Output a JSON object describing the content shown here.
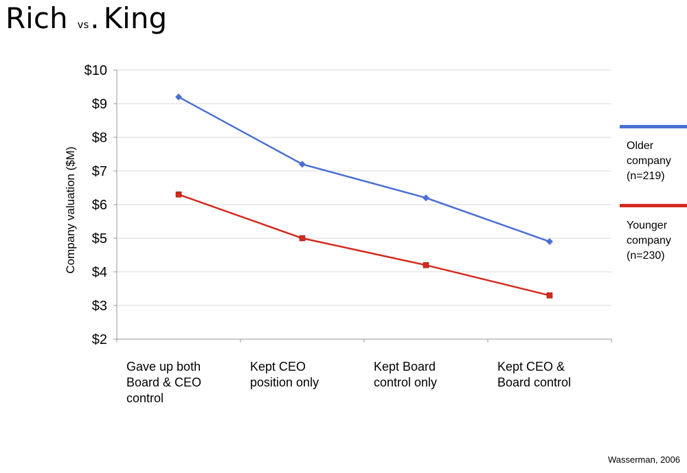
{
  "title": {
    "main_left": "Rich",
    "vs": "vs",
    "dot": ".",
    "main_right": "King"
  },
  "chart_data": {
    "type": "line",
    "title": "Rich vs. King",
    "xlabel": "",
    "ylabel": "Company valuation ($M)",
    "ylim": [
      2,
      10
    ],
    "yticks": [
      2,
      3,
      4,
      5,
      6,
      7,
      8,
      9,
      10
    ],
    "ytick_labels": [
      "$2",
      "$3",
      "$4",
      "$5",
      "$6",
      "$7",
      "$8",
      "$9",
      "$10"
    ],
    "grid": true,
    "categories": [
      [
        "Gave up both",
        "Board & CEO",
        "control"
      ],
      [
        "Kept CEO",
        "position only"
      ],
      [
        "Kept Board",
        "control only"
      ],
      [
        "Kept CEO &",
        "Board control"
      ]
    ],
    "series": [
      {
        "name": "Older company (n=219)",
        "legend_lines": [
          "Older",
          "company",
          "(n=219)"
        ],
        "color": "#4a6fd4",
        "marker": "diamond",
        "values": [
          9.2,
          7.2,
          6.2,
          4.9
        ]
      },
      {
        "name": "Younger company (n=230)",
        "legend_lines": [
          "Younger",
          "company",
          "(n=230)"
        ],
        "color": "#d42a1e",
        "marker": "square",
        "values": [
          6.3,
          5.0,
          4.2,
          3.3
        ]
      }
    ],
    "legend_position": "right"
  },
  "source": "Wasserman, 2006"
}
